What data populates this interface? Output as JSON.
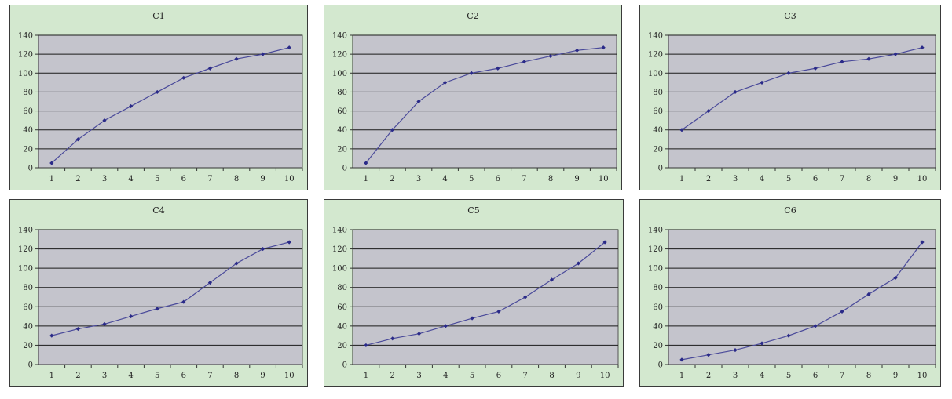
{
  "colors": {
    "panel_bg": "#d3e8cf",
    "plot_bg": "#c4c4cc",
    "gridline": "#1a1a1a",
    "series_line": "#4a4a9a",
    "marker": "#2a2a88"
  },
  "chart_data": [
    {
      "type": "line",
      "title": "C1",
      "xlabel": "",
      "ylabel": "",
      "categories": [
        "1",
        "2",
        "3",
        "4",
        "5",
        "6",
        "7",
        "8",
        "9",
        "10"
      ],
      "yticks": [
        "0",
        "20",
        "40",
        "60",
        "80",
        "100",
        "120",
        "140"
      ],
      "ylim": [
        0,
        140
      ],
      "grid": true,
      "legend": "none",
      "series": [
        {
          "values": [
            5,
            30,
            50,
            65,
            80,
            95,
            105,
            115,
            120,
            127
          ]
        }
      ]
    },
    {
      "type": "line",
      "title": "C2",
      "xlabel": "",
      "ylabel": "",
      "categories": [
        "1",
        "2",
        "3",
        "4",
        "5",
        "6",
        "7",
        "8",
        "9",
        "10"
      ],
      "yticks": [
        "0",
        "20",
        "40",
        "60",
        "80",
        "100",
        "120",
        "140"
      ],
      "ylim": [
        0,
        140
      ],
      "grid": true,
      "legend": "none",
      "series": [
        {
          "values": [
            5,
            40,
            70,
            90,
            100,
            105,
            112,
            118,
            124,
            127
          ]
        }
      ]
    },
    {
      "type": "line",
      "title": "C3",
      "xlabel": "",
      "ylabel": "",
      "categories": [
        "1",
        "2",
        "3",
        "4",
        "5",
        "6",
        "7",
        "8",
        "9",
        "10"
      ],
      "yticks": [
        "0",
        "20",
        "40",
        "60",
        "80",
        "100",
        "120",
        "140"
      ],
      "ylim": [
        0,
        140
      ],
      "grid": true,
      "legend": "none",
      "series": [
        {
          "values": [
            40,
            60,
            80,
            90,
            100,
            105,
            112,
            115,
            120,
            127
          ]
        }
      ]
    },
    {
      "type": "line",
      "title": "C4",
      "xlabel": "",
      "ylabel": "",
      "categories": [
        "1",
        "2",
        "3",
        "4",
        "5",
        "6",
        "7",
        "8",
        "9",
        "10"
      ],
      "yticks": [
        "0",
        "20",
        "40",
        "60",
        "80",
        "100",
        "120",
        "140"
      ],
      "ylim": [
        0,
        140
      ],
      "grid": true,
      "legend": "none",
      "series": [
        {
          "values": [
            30,
            37,
            42,
            50,
            58,
            65,
            85,
            105,
            120,
            127
          ]
        }
      ]
    },
    {
      "type": "line",
      "title": "C5",
      "xlabel": "",
      "ylabel": "",
      "categories": [
        "1",
        "2",
        "3",
        "4",
        "5",
        "6",
        "7",
        "8",
        "9",
        "10"
      ],
      "yticks": [
        "0",
        "20",
        "40",
        "60",
        "80",
        "100",
        "120",
        "140"
      ],
      "ylim": [
        0,
        140
      ],
      "grid": true,
      "legend": "none",
      "series": [
        {
          "values": [
            20,
            27,
            32,
            40,
            48,
            55,
            70,
            88,
            105,
            127
          ]
        }
      ]
    },
    {
      "type": "line",
      "title": "C6",
      "xlabel": "",
      "ylabel": "",
      "categories": [
        "1",
        "2",
        "3",
        "4",
        "5",
        "6",
        "7",
        "8",
        "9",
        "10"
      ],
      "yticks": [
        "0",
        "20",
        "40",
        "60",
        "80",
        "100",
        "120",
        "140"
      ],
      "ylim": [
        0,
        140
      ],
      "grid": true,
      "legend": "none",
      "series": [
        {
          "values": [
            5,
            10,
            15,
            22,
            30,
            40,
            55,
            73,
            90,
            127
          ]
        }
      ]
    }
  ]
}
